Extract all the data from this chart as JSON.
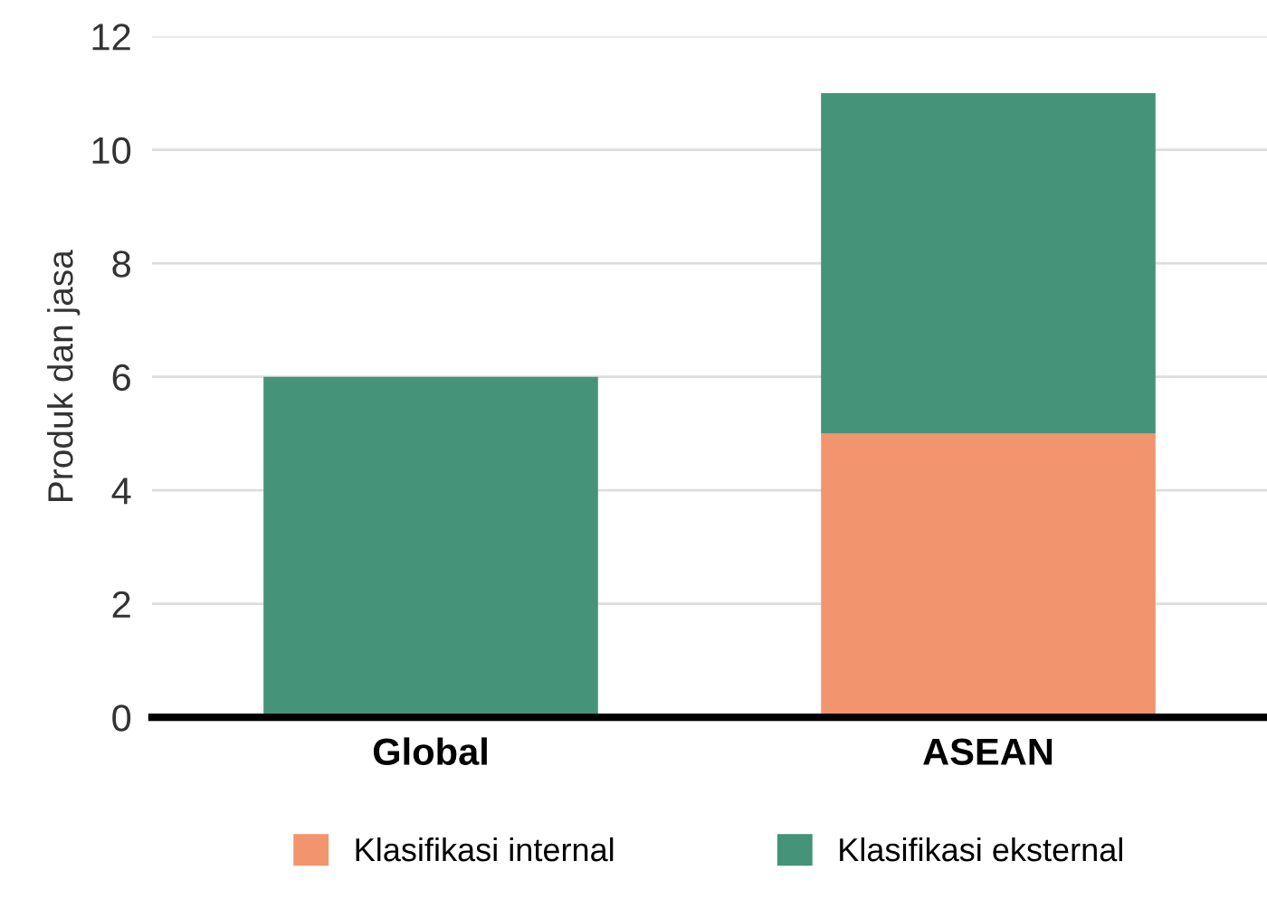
{
  "chart_data": {
    "type": "bar",
    "stacked": true,
    "ylabel": "Produk dan jasa",
    "categories": [
      "Global",
      "ASEAN"
    ],
    "series": [
      {
        "name": "Klasifikasi internal",
        "color": "#f2956e",
        "values": [
          0,
          5
        ]
      },
      {
        "name": "Klasifikasi eksternal",
        "color": "#459378",
        "values": [
          6,
          6
        ]
      }
    ],
    "ylim": [
      0,
      12
    ],
    "yticks": [
      0,
      2,
      4,
      6,
      8,
      10,
      12
    ],
    "grid": "y",
    "legend": "bottom"
  }
}
